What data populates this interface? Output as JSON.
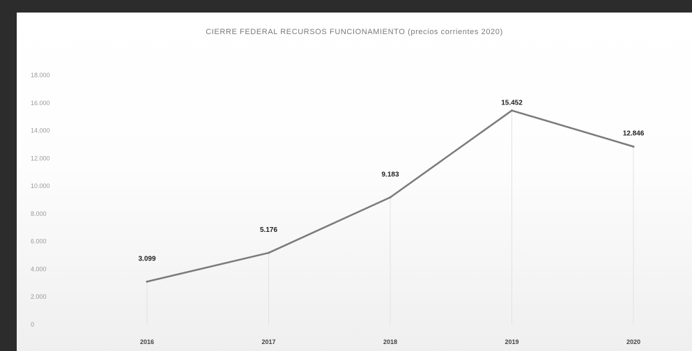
{
  "chart_data": {
    "type": "line",
    "title": "CIERRE FEDERAL RECURSOS FUNCIONAMIENTO (precios corrientes 2020)",
    "xlabel": "",
    "ylabel": "",
    "categories": [
      "2016",
      "2017",
      "2018",
      "2019",
      "2020"
    ],
    "series": [
      {
        "values": [
          3099,
          5176,
          9183,
          15452,
          12846
        ]
      }
    ],
    "data_labels": [
      "3.099",
      "5.176",
      "9.183",
      "15.452",
      "12.846"
    ],
    "y_ticks": [
      0,
      2000,
      4000,
      6000,
      8000,
      10000,
      12000,
      14000,
      16000,
      18000
    ],
    "y_tick_labels": [
      "0",
      "2.000",
      "4.000",
      "6.000",
      "8.000",
      "10.000",
      "12.000",
      "14.000",
      "16.000",
      "18.000"
    ],
    "ylim": [
      0,
      18000
    ],
    "grid": false,
    "legend": "none",
    "colors": {
      "line": "#7b7b7b",
      "background": "#ffffff",
      "outer": "#2c2c2c"
    }
  }
}
